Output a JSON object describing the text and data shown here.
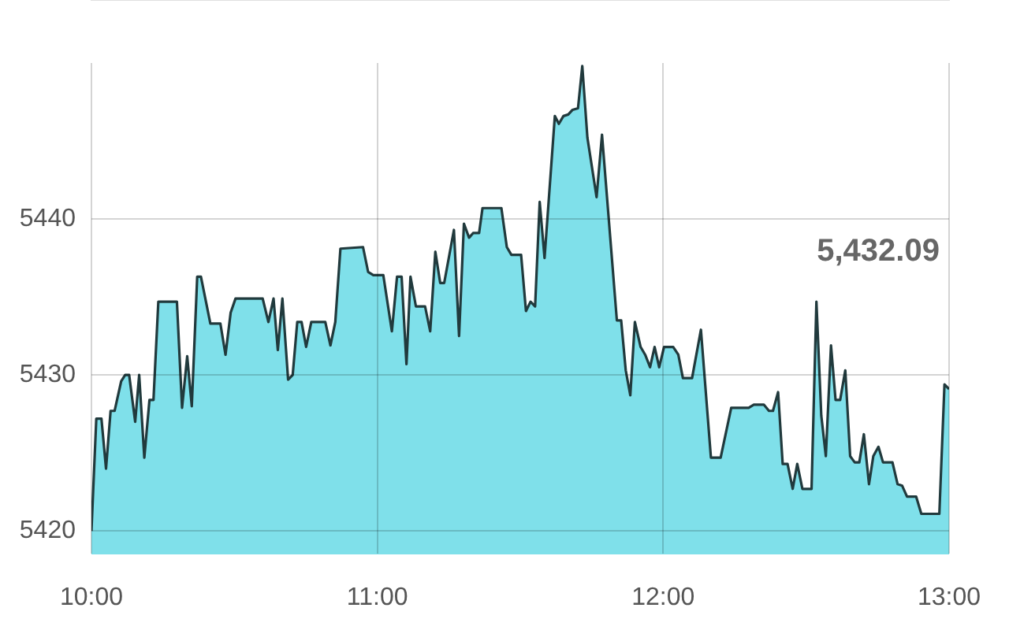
{
  "chart_data": {
    "type": "area",
    "x": [
      10,
      10.017,
      10.035,
      10.051,
      10.067,
      10.081,
      10.104,
      10.118,
      10.132,
      10.153,
      10.167,
      10.185,
      10.203,
      10.217,
      10.234,
      10.299,
      10.317,
      10.335,
      10.351,
      10.37,
      10.383,
      10.416,
      10.451,
      10.469,
      10.487,
      10.504,
      10.599,
      10.619,
      10.637,
      10.652,
      10.668,
      10.688,
      10.704,
      10.72,
      10.735,
      10.751,
      10.769,
      10.818,
      10.836,
      10.853,
      10.871,
      10.95,
      10.968,
      10.986,
      11.021,
      11.051,
      11.069,
      11.085,
      11.102,
      11.116,
      11.135,
      11.167,
      11.185,
      11.203,
      11.22,
      11.234,
      11.268,
      11.286,
      11.303,
      11.321,
      11.335,
      11.356,
      11.368,
      11.434,
      11.453,
      11.469,
      11.503,
      11.52,
      11.536,
      11.552,
      11.568,
      11.585,
      11.621,
      11.635,
      11.651,
      11.668,
      11.683,
      11.702,
      11.717,
      11.735,
      11.767,
      11.786,
      11.838,
      11.853,
      11.869,
      11.885,
      11.901,
      11.921,
      11.937,
      11.954,
      11.97,
      11.986,
      12.003,
      12.035,
      12.053,
      12.069,
      12.101,
      12.132,
      12.167,
      12.201,
      12.238,
      12.299,
      12.317,
      12.352,
      12.37,
      12.384,
      12.402,
      12.418,
      12.435,
      12.453,
      12.469,
      12.487,
      12.519,
      12.536,
      12.553,
      12.569,
      12.587,
      12.603,
      12.619,
      12.637,
      12.654,
      12.67,
      12.686,
      12.702,
      12.72,
      12.735,
      12.753,
      12.769,
      12.802,
      12.82,
      12.836,
      12.853,
      12.885,
      12.903,
      12.966,
      12.984,
      13
    ],
    "values": [
      5420,
      5427.2,
      5427.2,
      5424,
      5427.7,
      5427.7,
      5429.6,
      5430,
      5430,
      5427,
      5430,
      5424.7,
      5428.4,
      5428.4,
      5434.7,
      5434.7,
      5427.9,
      5431.2,
      5428,
      5436.3,
      5436.3,
      5433.3,
      5433.3,
      5431.3,
      5434,
      5434.9,
      5434.9,
      5433.4,
      5434.9,
      5431.6,
      5434.9,
      5429.7,
      5430,
      5433.4,
      5433.4,
      5431.8,
      5433.4,
      5433.4,
      5431.9,
      5433.4,
      5438.1,
      5438.2,
      5436.6,
      5436.4,
      5436.4,
      5432.8,
      5436.3,
      5436.3,
      5430.7,
      5436.3,
      5434.4,
      5434.4,
      5432.8,
      5437.9,
      5435.9,
      5435.9,
      5439.3,
      5432.5,
      5439.7,
      5438.8,
      5439.1,
      5439.1,
      5440.7,
      5440.7,
      5438.2,
      5437.7,
      5437.7,
      5434.1,
      5434.7,
      5434.4,
      5441.1,
      5437.5,
      5446.6,
      5446.1,
      5446.6,
      5446.7,
      5447,
      5447.1,
      5449.8,
      5445.2,
      5441.4,
      5445.4,
      5433.5,
      5433.5,
      5430.3,
      5428.7,
      5433.4,
      5431.8,
      5431.3,
      5430.5,
      5431.8,
      5430.5,
      5431.8,
      5431.8,
      5431.3,
      5429.8,
      5429.8,
      5432.9,
      5424.7,
      5424.7,
      5427.9,
      5427.9,
      5428.1,
      5428.1,
      5427.7,
      5427.7,
      5428.9,
      5424.3,
      5424.3,
      5422.7,
      5424.3,
      5422.7,
      5422.7,
      5434.7,
      5427.4,
      5424.8,
      5431.9,
      5428.4,
      5428.4,
      5430.3,
      5424.8,
      5424.4,
      5424.4,
      5426.2,
      5423,
      5424.8,
      5425.4,
      5424.4,
      5424.4,
      5423,
      5422.9,
      5422.2,
      5422.2,
      5421.1,
      5421.1,
      5429.4,
      5429.1
    ],
    "color": "#7fe0ea",
    "xlim": [
      10,
      13
    ],
    "xticks": [
      {
        "value": 10,
        "label": "10:00"
      },
      {
        "value": 11,
        "label": "11:00"
      },
      {
        "value": 12,
        "label": "12:00"
      },
      {
        "value": 13,
        "label": "13:00"
      }
    ],
    "ylim": [
      5418.5,
      5450
    ],
    "yticks": [
      5420,
      5430,
      5440
    ],
    "grid": true,
    "annotations": [
      "5,432.09"
    ]
  }
}
